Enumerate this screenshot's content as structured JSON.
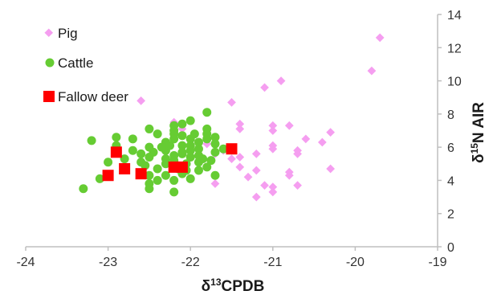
{
  "chart_data": {
    "type": "scatter",
    "xlabel": {
      "delta": "δ",
      "sup": "13",
      "rest": "CPDB"
    },
    "ylabel": {
      "delta": "δ",
      "sup": "15",
      "rest": "N AIR"
    },
    "xlim": [
      -24,
      -19
    ],
    "ylim": [
      0,
      14
    ],
    "x_ticks": [
      "-24",
      "-23",
      "-22",
      "-21",
      "-20",
      "-19"
    ],
    "y_ticks": [
      "0",
      "2",
      "4",
      "6",
      "8",
      "10",
      "12",
      "14"
    ],
    "grid": false,
    "legend_position": "top-left",
    "series": [
      {
        "name": "Pig",
        "marker": "diamond",
        "color": "#f59ef0",
        "points": [
          [
            -19.7,
            12.6
          ],
          [
            -19.8,
            10.6
          ],
          [
            -20.9,
            10.0
          ],
          [
            -21.1,
            9.6
          ],
          [
            -22.6,
            8.8
          ],
          [
            -21.5,
            8.7
          ],
          [
            -21.4,
            7.4
          ],
          [
            -21.4,
            7.1
          ],
          [
            -21.0,
            7.3
          ],
          [
            -21.0,
            7.0
          ],
          [
            -20.8,
            7.3
          ],
          [
            -20.3,
            6.9
          ],
          [
            -20.6,
            6.5
          ],
          [
            -20.4,
            6.3
          ],
          [
            -21.0,
            6.1
          ],
          [
            -21.0,
            5.9
          ],
          [
            -20.7,
            5.8
          ],
          [
            -20.7,
            5.6
          ],
          [
            -21.2,
            5.6
          ],
          [
            -21.6,
            5.8
          ],
          [
            -21.7,
            5.6
          ],
          [
            -21.8,
            6.2
          ],
          [
            -21.4,
            5.4
          ],
          [
            -21.5,
            5.3
          ],
          [
            -21.4,
            4.8
          ],
          [
            -21.2,
            4.6
          ],
          [
            -20.8,
            4.5
          ],
          [
            -20.8,
            4.3
          ],
          [
            -20.3,
            4.7
          ],
          [
            -21.3,
            4.2
          ],
          [
            -21.7,
            3.8
          ],
          [
            -21.1,
            3.7
          ],
          [
            -21.0,
            3.6
          ],
          [
            -21.0,
            3.3
          ],
          [
            -20.7,
            3.7
          ],
          [
            -21.2,
            3.0
          ],
          [
            -22.2,
            7.5
          ],
          [
            -22.1,
            7.1
          ]
        ]
      },
      {
        "name": "Cattle",
        "marker": "circle",
        "color": "#66cc33",
        "points": [
          [
            -23.3,
            3.5
          ],
          [
            -23.1,
            4.1
          ],
          [
            -23.2,
            6.4
          ],
          [
            -23.0,
            5.1
          ],
          [
            -22.9,
            6.6
          ],
          [
            -22.7,
            6.5
          ],
          [
            -22.8,
            5.3
          ],
          [
            -22.6,
            5.6
          ],
          [
            -22.5,
            3.8
          ],
          [
            -22.5,
            4.3
          ],
          [
            -22.5,
            6.0
          ],
          [
            -22.4,
            4.7
          ],
          [
            -22.3,
            5.0
          ],
          [
            -22.5,
            5.4
          ],
          [
            -22.2,
            5.5
          ],
          [
            -22.4,
            6.8
          ],
          [
            -22.5,
            7.1
          ],
          [
            -22.3,
            6.3
          ],
          [
            -22.2,
            6.5
          ],
          [
            -22.2,
            6.8
          ],
          [
            -22.2,
            7.0
          ],
          [
            -22.1,
            7.4
          ],
          [
            -22.0,
            7.6
          ],
          [
            -22.1,
            6.7
          ],
          [
            -22.0,
            6.5
          ],
          [
            -22.0,
            6.1
          ],
          [
            -22.1,
            5.7
          ],
          [
            -22.0,
            5.4
          ],
          [
            -22.2,
            5.2
          ],
          [
            -21.9,
            5.5
          ],
          [
            -21.9,
            5.9
          ],
          [
            -21.8,
            6.5
          ],
          [
            -21.8,
            7.1
          ],
          [
            -21.7,
            6.6
          ],
          [
            -21.7,
            6.2
          ],
          [
            -21.6,
            5.9
          ],
          [
            -21.8,
            8.1
          ],
          [
            -21.9,
            5.1
          ],
          [
            -21.8,
            4.8
          ],
          [
            -21.7,
            4.3
          ],
          [
            -21.9,
            4.6
          ],
          [
            -22.0,
            4.1
          ],
          [
            -22.1,
            4.4
          ],
          [
            -22.2,
            4.0
          ],
          [
            -22.3,
            4.3
          ],
          [
            -22.4,
            4.0
          ],
          [
            -22.5,
            3.5
          ],
          [
            -22.2,
            3.3
          ],
          [
            -22.6,
            5.1
          ],
          [
            -22.7,
            5.8
          ],
          [
            -22.9,
            6.1
          ],
          [
            -22.3,
            5.8
          ],
          [
            -22.1,
            6.1
          ],
          [
            -21.95,
            6.8
          ],
          [
            -22.05,
            5.0
          ],
          [
            -21.75,
            5.2
          ],
          [
            -22.35,
            6.0
          ],
          [
            -22.45,
            5.7
          ],
          [
            -22.15,
            4.7
          ],
          [
            -21.85,
            5.3
          ],
          [
            -22.0,
            5.8
          ],
          [
            -22.25,
            6.1
          ],
          [
            -21.9,
            6.3
          ],
          [
            -22.1,
            5.6
          ],
          [
            -21.7,
            5.7
          ],
          [
            -22.3,
            5.3
          ],
          [
            -22.55,
            4.9
          ],
          [
            -22.05,
            4.6
          ],
          [
            -21.8,
            6.8
          ],
          [
            -22.2,
            7.3
          ]
        ]
      },
      {
        "name": "Fallow deer",
        "marker": "square",
        "color": "#ff0000",
        "points": [
          [
            -23.0,
            4.3
          ],
          [
            -22.9,
            5.7
          ],
          [
            -22.8,
            4.7
          ],
          [
            -22.6,
            4.4
          ],
          [
            -22.2,
            4.8
          ],
          [
            -22.1,
            4.8
          ],
          [
            -21.5,
            5.9
          ]
        ]
      }
    ]
  }
}
